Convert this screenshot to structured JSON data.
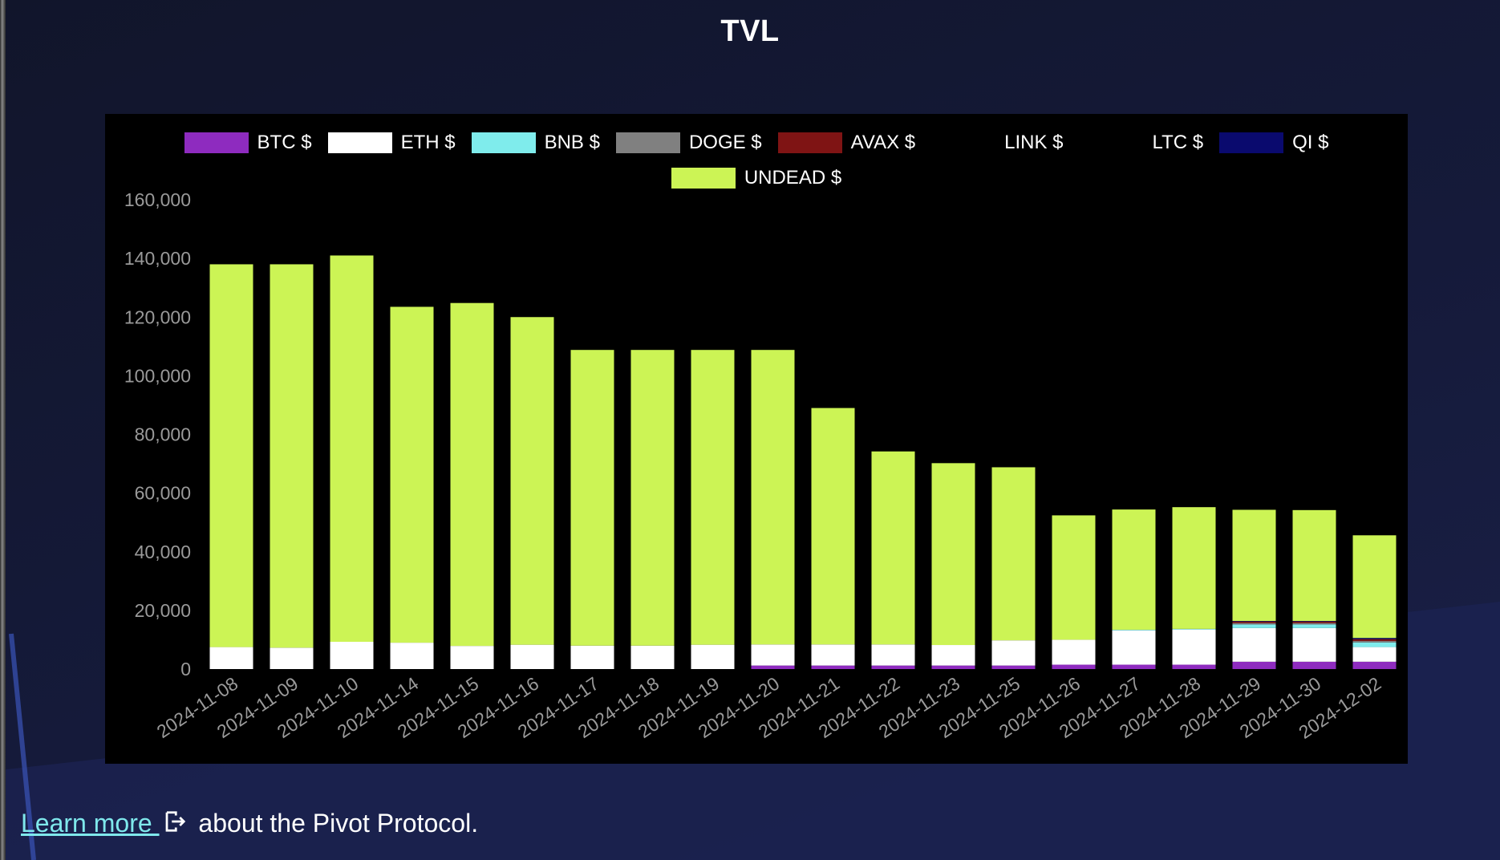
{
  "page": {
    "title": "TVL"
  },
  "footer": {
    "link_text": "Learn more ",
    "icon": "external-link-icon",
    "suffix": " about the Pivot Protocol."
  },
  "chart_data": {
    "type": "bar",
    "stacked": true,
    "title": "TVL",
    "xlabel": "",
    "ylabel": "",
    "ylim": [
      0,
      160000
    ],
    "yticks": [
      0,
      20000,
      40000,
      60000,
      80000,
      100000,
      120000,
      140000,
      160000
    ],
    "ytick_labels": [
      "0",
      "20,000",
      "40,000",
      "60,000",
      "80,000",
      "100,000",
      "120,000",
      "140,000",
      "160,000"
    ],
    "legend_position": "top",
    "grid": false,
    "categories": [
      "2024-11-08",
      "2024-11-09",
      "2024-11-10",
      "2024-11-14",
      "2024-11-15",
      "2024-11-16",
      "2024-11-17",
      "2024-11-18",
      "2024-11-19",
      "2024-11-20",
      "2024-11-21",
      "2024-11-22",
      "2024-11-23",
      "2024-11-25",
      "2024-11-26",
      "2024-11-27",
      "2024-11-28",
      "2024-11-29",
      "2024-11-30",
      "2024-12-02"
    ],
    "series": [
      {
        "name": "BTC $",
        "color": "#8e2bbf",
        "values": [
          0,
          0,
          0,
          0,
          0,
          0,
          0,
          0,
          0,
          1200,
          1200,
          1200,
          1200,
          1200,
          1500,
          1500,
          1500,
          2500,
          2500,
          2500
        ]
      },
      {
        "name": "ETH $",
        "color": "#ffffff",
        "values": [
          7500,
          7300,
          9300,
          9000,
          7900,
          8300,
          8000,
          8000,
          8300,
          7200,
          7200,
          7200,
          7000,
          8600,
          8500,
          11700,
          12000,
          11500,
          11500,
          5000
        ]
      },
      {
        "name": "BNB $",
        "color": "#7fecec",
        "values": [
          0,
          0,
          0,
          0,
          0,
          0,
          0,
          0,
          0,
          0,
          0,
          0,
          0,
          0,
          0,
          200,
          200,
          1200,
          1200,
          1600
        ]
      },
      {
        "name": "DOGE $",
        "color": "#808080",
        "values": [
          0,
          0,
          0,
          0,
          0,
          0,
          0,
          0,
          0,
          0,
          0,
          0,
          0,
          0,
          0,
          0,
          0,
          500,
          500,
          500
        ]
      },
      {
        "name": "AVAX $",
        "color": "#7f1414",
        "values": [
          0,
          0,
          0,
          0,
          0,
          0,
          0,
          0,
          0,
          0,
          0,
          0,
          0,
          0,
          0,
          0,
          0,
          500,
          500,
          600
        ]
      },
      {
        "name": "LINK $",
        "color": "#000000",
        "values": [
          0,
          0,
          0,
          0,
          0,
          0,
          0,
          0,
          0,
          0,
          0,
          0,
          0,
          0,
          0,
          0,
          0,
          0,
          0,
          0
        ]
      },
      {
        "name": "LTC $",
        "color": "#000000",
        "values": [
          0,
          0,
          0,
          0,
          0,
          0,
          0,
          0,
          0,
          0,
          0,
          0,
          0,
          0,
          0,
          0,
          0,
          0,
          0,
          0
        ]
      },
      {
        "name": "QI $",
        "color": "#0a0a6e",
        "values": [
          0,
          0,
          0,
          0,
          0,
          0,
          0,
          0,
          0,
          0,
          0,
          0,
          0,
          0,
          0,
          0,
          0,
          200,
          200,
          400
        ]
      },
      {
        "name": "UNDEAD $",
        "color": "#ccf455",
        "values": [
          130500,
          130700,
          131700,
          114500,
          116900,
          111700,
          100800,
          100800,
          100500,
          100400,
          80600,
          65800,
          62000,
          59000,
          42400,
          41000,
          41500,
          37900,
          37800,
          35000
        ]
      }
    ]
  }
}
